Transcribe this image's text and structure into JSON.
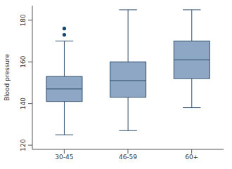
{
  "chart_data": {
    "type": "box",
    "y_label": "Blood pressure",
    "categories": [
      "30-45",
      "46-59",
      "60+"
    ],
    "boxes": [
      {
        "min": 125,
        "q1": 141,
        "median": 147,
        "q3": 153,
        "max": 170
      },
      {
        "min": 127,
        "q1": 143,
        "median": 151,
        "q3": 160,
        "max": 185
      },
      {
        "min": 138,
        "q1": 152,
        "median": 161,
        "q3": 170,
        "max": 185
      }
    ],
    "outliers": [
      [
        173,
        176
      ],
      [],
      []
    ],
    "color": "#8da7c4",
    "ylim": [
      118,
      187
    ],
    "yticks": [
      120,
      140,
      160,
      180
    ],
    "grid": false
  }
}
